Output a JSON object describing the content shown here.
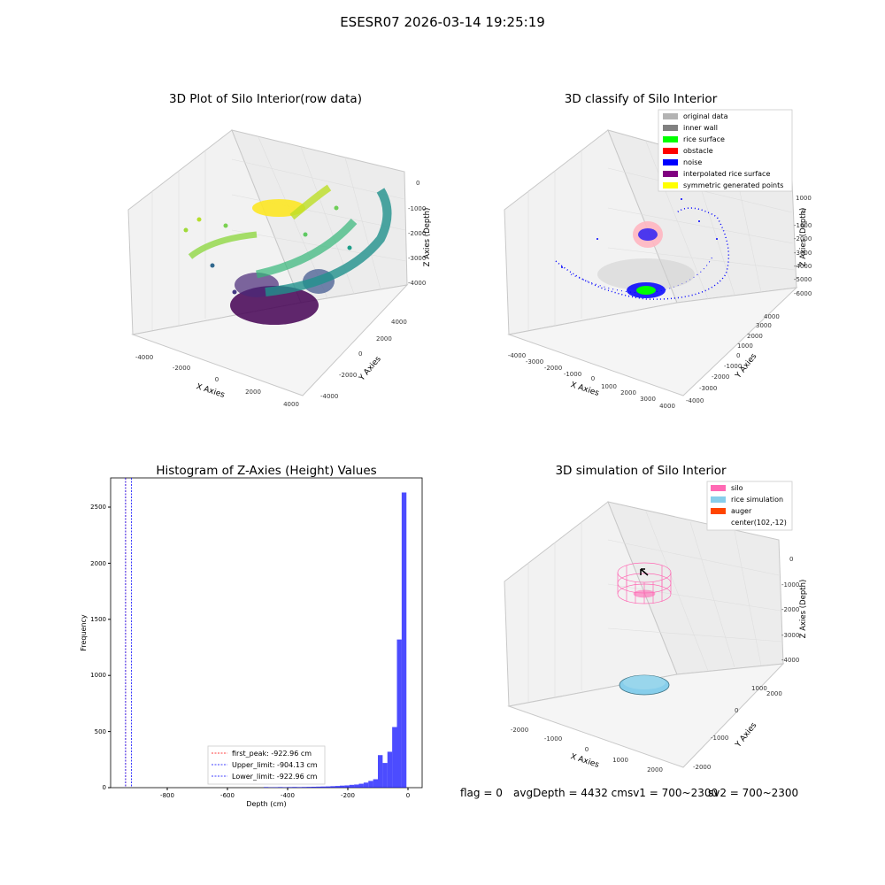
{
  "suptitle": "ESESR07 2026-03-14 19:25:19",
  "panels": {
    "raw": {
      "title": "3D Plot of Silo Interior(row data)",
      "x_label": "X Axies",
      "y_label": "Y Axies",
      "z_label": "Z Axies (Depth)",
      "x_ticks": [
        "-4000",
        "-2000",
        "0",
        "2000",
        "4000"
      ],
      "y_ticks": [
        "-4000",
        "-2000",
        "0",
        "2000",
        "4000"
      ],
      "z_ticks": [
        "0",
        "-1000",
        "-2000",
        "-3000",
        "-4000"
      ]
    },
    "classify": {
      "title": "3D classify of Silo Interior",
      "x_label": "X Axies",
      "y_label": "Y Axies",
      "z_label": "Z Axies (Depth)",
      "x_ticks": [
        "-4000",
        "-3000",
        "-2000",
        "-1000",
        "0",
        "1000",
        "2000",
        "3000",
        "4000"
      ],
      "y_ticks": [
        "-4000",
        "-3000",
        "-2000",
        "-1000",
        "0",
        "1000",
        "2000",
        "3000",
        "4000"
      ],
      "z_ticks": [
        "1000",
        "0",
        "-1000",
        "-2000",
        "-3000",
        "-4000",
        "-5000",
        "-6000"
      ],
      "legend": [
        {
          "label": "original data",
          "color": "#b3b3b3"
        },
        {
          "label": "inner wall",
          "color": "#808080"
        },
        {
          "label": "rice surface",
          "color": "#00ff00"
        },
        {
          "label": "obstacle",
          "color": "#ff0000"
        },
        {
          "label": "noise",
          "color": "#0000ff"
        },
        {
          "label": "interpolated rice surface",
          "color": "#800080"
        },
        {
          "label": "symmetric generated points",
          "color": "#ffff00"
        }
      ]
    },
    "histogram": {
      "title": "Histogram of Z-Axies (Height) Values",
      "x_label": "Depth (cm)",
      "y_label": "Frequency",
      "x_ticks": [
        "-800",
        "-600",
        "-400",
        "-200",
        "0"
      ],
      "y_ticks": [
        "0",
        "500",
        "1000",
        "1500",
        "2000",
        "2500"
      ],
      "legend": [
        {
          "label": "first_peak: -922.96 cm",
          "color": "#ff0000"
        },
        {
          "label": "Upper_limit: -904.13 cm",
          "color": "#0000ff"
        },
        {
          "label": "Lower_limit: -922.96 cm",
          "color": "#0000ff"
        }
      ]
    },
    "simulation": {
      "title": "3D simulation of Silo Interior",
      "x_label": "X Axies",
      "y_label": "Y Axies",
      "z_label": "Z Axies (Depth)",
      "x_ticks": [
        "-2000",
        "-1000",
        "0",
        "1000",
        "2000"
      ],
      "y_ticks": [
        "-2000",
        "-1000",
        "0",
        "1000",
        "2000"
      ],
      "z_ticks": [
        "0",
        "-1000",
        "-2000",
        "-3000",
        "-4000"
      ],
      "legend": [
        {
          "label": "silo",
          "color": "#ff69b4"
        },
        {
          "label": "rice simulation",
          "color": "#87ceeb"
        },
        {
          "label": "auger",
          "color": "#ff4500"
        },
        {
          "label": "center(102,-12)",
          "color": ""
        }
      ]
    }
  },
  "footer": {
    "flag": "flag = 0",
    "avg": "avgDepth = 4432 cmsv1 = 700~2300",
    "sv2": "sv2 = 700~2300"
  },
  "chart_data": {
    "type": "bar",
    "title": "Histogram of Z-Axies (Height) Values",
    "xlabel": "Depth (cm)",
    "ylabel": "Frequency",
    "xlim": [
      -970,
      12
    ],
    "ylim": [
      0,
      2760
    ],
    "bin_width": 15,
    "bins": [
      {
        "x": -480,
        "count": 5
      },
      {
        "x": -465,
        "count": 3
      },
      {
        "x": -450,
        "count": 4
      },
      {
        "x": -435,
        "count": 5
      },
      {
        "x": -420,
        "count": 4
      },
      {
        "x": -405,
        "count": 5
      },
      {
        "x": -390,
        "count": 6
      },
      {
        "x": -375,
        "count": 5
      },
      {
        "x": -360,
        "count": 6
      },
      {
        "x": -345,
        "count": 7
      },
      {
        "x": -330,
        "count": 8
      },
      {
        "x": -315,
        "count": 9
      },
      {
        "x": -300,
        "count": 10
      },
      {
        "x": -285,
        "count": 11
      },
      {
        "x": -270,
        "count": 13
      },
      {
        "x": -255,
        "count": 15
      },
      {
        "x": -240,
        "count": 18
      },
      {
        "x": -225,
        "count": 20
      },
      {
        "x": -210,
        "count": 25
      },
      {
        "x": -195,
        "count": 28
      },
      {
        "x": -180,
        "count": 35
      },
      {
        "x": -165,
        "count": 45
      },
      {
        "x": -150,
        "count": 60
      },
      {
        "x": -135,
        "count": 75
      },
      {
        "x": -120,
        "count": 290
      },
      {
        "x": -105,
        "count": 220
      },
      {
        "x": -90,
        "count": 320
      },
      {
        "x": -75,
        "count": 540
      },
      {
        "x": -60,
        "count": 1320
      },
      {
        "x": -45,
        "count": 2630
      }
    ],
    "vlines": [
      {
        "name": "first_peak",
        "x": -922.96,
        "color": "#ff0000"
      },
      {
        "name": "Upper_limit",
        "x": -904.13,
        "color": "#0000ff"
      },
      {
        "name": "Lower_limit",
        "x": -922.96,
        "color": "#0000ff"
      }
    ]
  }
}
